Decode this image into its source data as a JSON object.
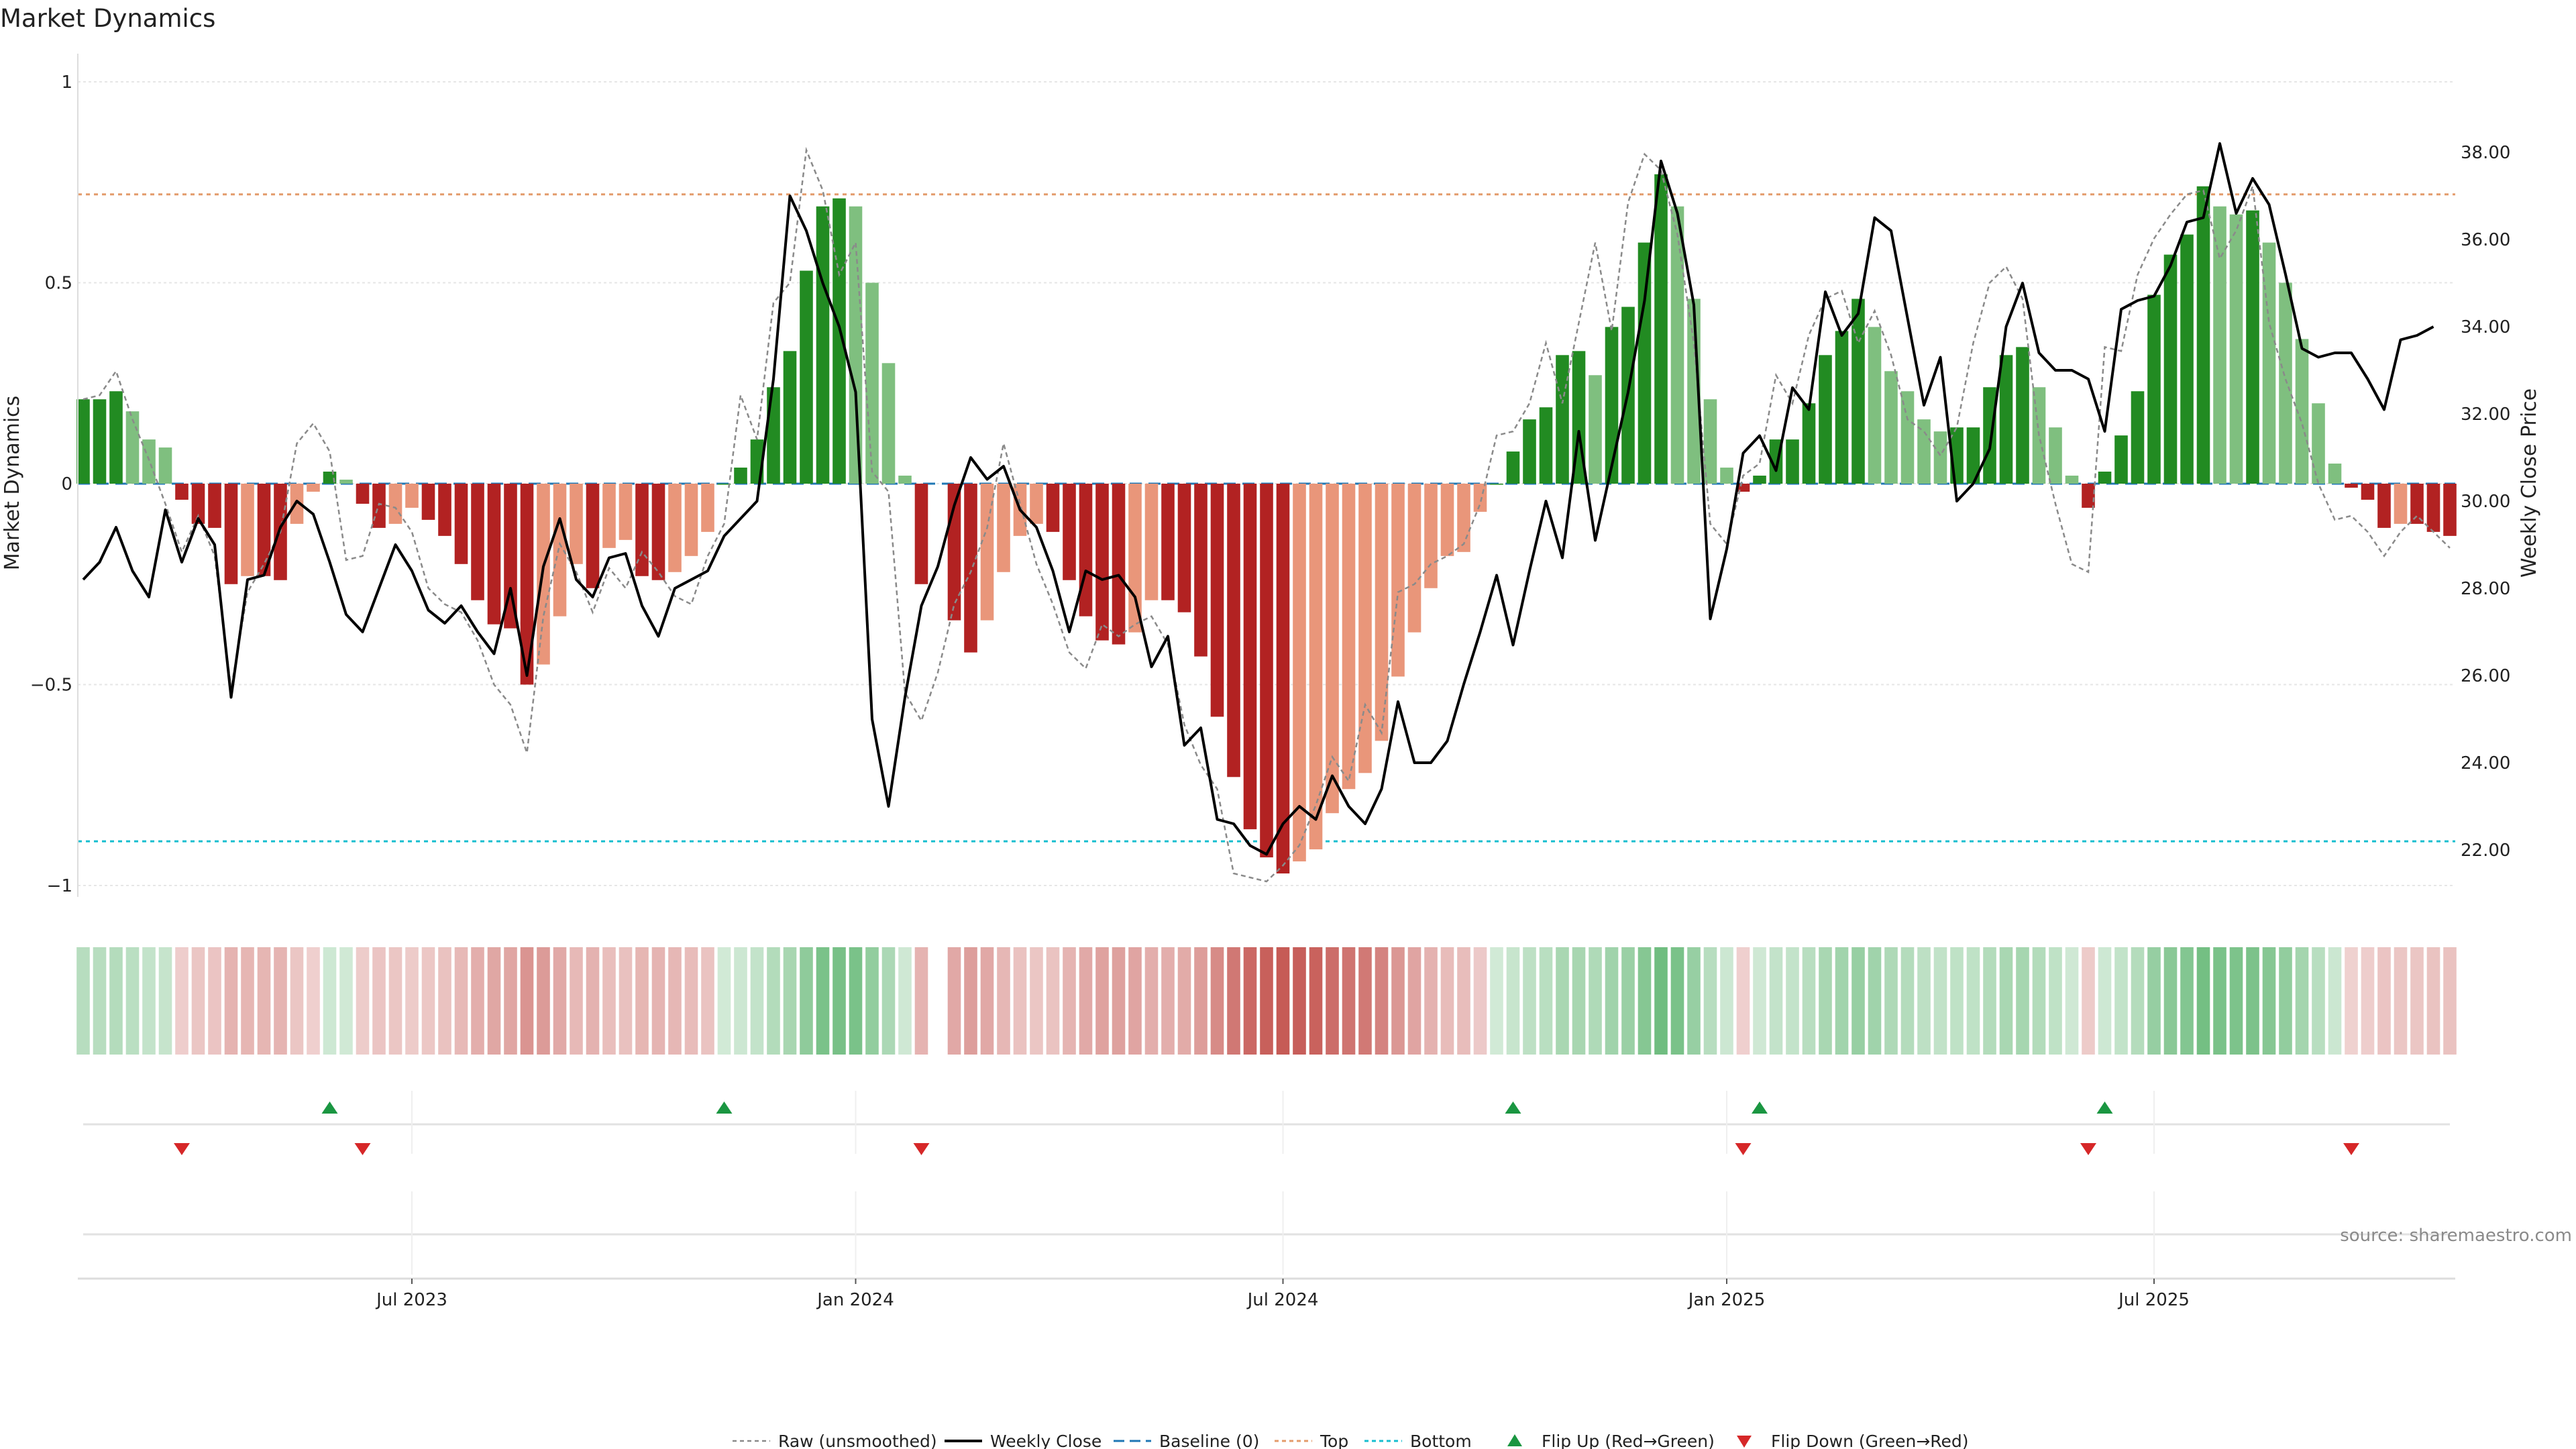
{
  "chart_data": {
    "type": "bar",
    "title": "Market Dynamics",
    "ylabel_left": "Market Dynamics",
    "ylabel_right": "Weekly Close Price",
    "ylim_left": [
      -1.02,
      1.02
    ],
    "ylim_right": [
      21.0,
      39.8
    ],
    "left_ticks": [
      {
        "v": 1,
        "l": "1"
      },
      {
        "v": 0.5,
        "l": "0.5"
      },
      {
        "v": 0,
        "l": "0"
      },
      {
        "v": -0.5,
        "l": "−0.5"
      },
      {
        "v": -1,
        "l": "−1"
      }
    ],
    "right_ticks": [
      {
        "v": 22,
        "l": "22.00"
      },
      {
        "v": 24,
        "l": "24.00"
      },
      {
        "v": 26,
        "l": "26.00"
      },
      {
        "v": 28,
        "l": "28.00"
      },
      {
        "v": 30,
        "l": "30.00"
      },
      {
        "v": 32,
        "l": "32.00"
      },
      {
        "v": 34,
        "l": "34.00"
      },
      {
        "v": 36,
        "l": "36.00"
      },
      {
        "v": 38,
        "l": "38.00"
      }
    ],
    "x_ticks": [
      {
        "i": 20,
        "l": "Jul 2023"
      },
      {
        "i": 47,
        "l": "Jan 2024"
      },
      {
        "i": 73,
        "l": "Jul 2024"
      },
      {
        "i": 100,
        "l": "Jan 2025"
      },
      {
        "i": 126,
        "l": "Jul 2025"
      }
    ],
    "top_level": 0.72,
    "bottom_level": -0.89,
    "baseline": 0,
    "colors": {
      "strong_green": "#228b22",
      "weak_green": "#7fbf7f",
      "strong_red": "#b22222",
      "weak_red": "#e9967a",
      "close_line": "#000000",
      "raw_line": "#8a8a8a",
      "baseline": "#1f77b4",
      "top": "#e39b6b",
      "bottom": "#17becf",
      "flip_up": "#1a9641",
      "flip_down": "#d62728",
      "grid": "#e6e6e6"
    },
    "series": [
      {
        "name": "Market Dynamics",
        "values": [
          0.21,
          0.21,
          0.23,
          0.18,
          0.11,
          0.09,
          -0.04,
          -0.1,
          -0.11,
          -0.25,
          -0.23,
          -0.23,
          -0.24,
          -0.1,
          -0.02,
          0.03,
          0.01,
          -0.05,
          -0.11,
          -0.1,
          -0.06,
          -0.09,
          -0.13,
          -0.2,
          -0.29,
          -0.35,
          -0.36,
          -0.5,
          -0.45,
          -0.33,
          -0.2,
          -0.26,
          -0.16,
          -0.14,
          -0.23,
          -0.24,
          -0.22,
          -0.18,
          -0.12,
          0.0,
          0.04,
          0.11,
          0.24,
          0.33,
          0.53,
          0.69,
          0.71,
          0.69,
          0.5,
          0.3,
          0.02,
          -0.25,
          null,
          -0.34,
          -0.42,
          -0.34,
          -0.22,
          -0.13,
          -0.1,
          -0.12,
          -0.24,
          -0.33,
          -0.39,
          -0.4,
          -0.37,
          -0.29,
          -0.29,
          -0.32,
          -0.43,
          -0.58,
          -0.73,
          -0.86,
          -0.93,
          -0.97,
          -0.94,
          -0.91,
          -0.82,
          -0.76,
          -0.72,
          -0.64,
          -0.48,
          -0.37,
          -0.26,
          -0.18,
          -0.17,
          -0.07,
          0.0,
          0.08,
          0.16,
          0.19,
          0.32,
          0.33,
          0.27,
          0.39,
          0.44,
          0.6,
          0.77,
          0.69,
          0.46,
          0.21,
          0.04,
          -0.02,
          0.02,
          0.11,
          0.11,
          0.2,
          0.32,
          0.38,
          0.46,
          0.39,
          0.28,
          0.23,
          0.16,
          0.13,
          0.14,
          0.14,
          0.24,
          0.32,
          0.34,
          0.24,
          0.14,
          0.02,
          -0.06,
          0.03,
          0.12,
          0.23,
          0.47,
          0.57,
          0.62,
          0.74,
          0.69,
          0.67,
          0.68,
          0.6,
          0.5,
          0.36,
          0.2,
          0.05,
          -0.01,
          -0.04,
          -0.11,
          -0.1,
          -0.1,
          -0.12,
          -0.13
        ]
      },
      {
        "name": "Raw (unsmoothed)",
        "values": [
          0.21,
          0.22,
          0.28,
          0.16,
          0.06,
          -0.05,
          -0.17,
          -0.08,
          -0.18,
          -0.51,
          -0.27,
          -0.2,
          -0.12,
          0.1,
          0.15,
          0.08,
          -0.19,
          -0.18,
          -0.05,
          -0.06,
          -0.12,
          -0.26,
          -0.3,
          -0.32,
          -0.39,
          -0.5,
          -0.55,
          -0.67,
          -0.33,
          -0.15,
          -0.22,
          -0.32,
          -0.21,
          -0.26,
          -0.17,
          -0.22,
          -0.28,
          -0.3,
          -0.18,
          -0.1,
          0.22,
          0.11,
          0.45,
          0.5,
          0.83,
          0.73,
          0.52,
          0.6,
          0.03,
          -0.02,
          -0.52,
          -0.59,
          -0.47,
          -0.3,
          -0.22,
          -0.11,
          0.1,
          -0.05,
          -0.2,
          -0.3,
          -0.42,
          -0.46,
          -0.35,
          -0.38,
          -0.35,
          -0.33,
          -0.4,
          -0.6,
          -0.7,
          -0.76,
          -0.97,
          -0.98,
          -0.99,
          -0.95,
          -0.9,
          -0.8,
          -0.68,
          -0.74,
          -0.55,
          -0.62,
          -0.27,
          -0.25,
          -0.2,
          -0.18,
          -0.15,
          -0.05,
          0.12,
          0.13,
          0.2,
          0.35,
          0.2,
          0.4,
          0.6,
          0.38,
          0.7,
          0.82,
          0.78,
          0.62,
          0.35,
          -0.1,
          -0.15,
          0.02,
          0.05,
          0.27,
          0.2,
          0.37,
          0.46,
          0.48,
          0.35,
          0.43,
          0.32,
          0.16,
          0.13,
          0.07,
          0.14,
          0.35,
          0.5,
          0.54,
          0.46,
          0.12,
          -0.05,
          -0.2,
          -0.22,
          0.34,
          0.33,
          0.52,
          0.61,
          0.67,
          0.72,
          0.73,
          0.56,
          0.63,
          0.74,
          0.4,
          0.26,
          0.15,
          0.0,
          -0.09,
          -0.08,
          -0.12,
          -0.18,
          -0.12,
          -0.08,
          -0.12,
          -0.16
        ]
      },
      {
        "name": "Weekly Close",
        "values": [
          28.2,
          28.6,
          29.4,
          28.4,
          27.8,
          29.8,
          28.6,
          29.6,
          29.0,
          25.5,
          28.2,
          28.3,
          29.4,
          30.0,
          29.7,
          28.6,
          27.4,
          27.0,
          28.0,
          29.0,
          28.4,
          27.5,
          27.2,
          27.6,
          27.0,
          26.5,
          28.0,
          26.0,
          28.5,
          29.6,
          28.2,
          27.8,
          28.7,
          28.8,
          27.6,
          26.9,
          28.0,
          28.2,
          28.4,
          29.2,
          29.6,
          30.0,
          32.8,
          37.0,
          36.2,
          35.0,
          34.0,
          32.5,
          25.0,
          23.0,
          25.5,
          27.6,
          28.5,
          29.9,
          31.0,
          30.5,
          30.8,
          29.8,
          29.4,
          28.4,
          27.0,
          28.4,
          28.2,
          28.3,
          27.8,
          26.2,
          26.9,
          24.4,
          24.8,
          22.7,
          22.6,
          22.1,
          21.9,
          22.6,
          23.0,
          22.7,
          23.7,
          23.0,
          22.6,
          23.4,
          25.4,
          24.0,
          24.0,
          24.5,
          25.8,
          27.0,
          28.3,
          26.7,
          28.4,
          30.0,
          28.7,
          31.6,
          29.1,
          30.8,
          32.5,
          34.6,
          37.8,
          36.6,
          34.5,
          27.3,
          28.9,
          31.1,
          31.5,
          30.7,
          32.6,
          32.1,
          34.8,
          33.8,
          34.3,
          36.5,
          36.2,
          34.2,
          32.2,
          33.3,
          30.0,
          30.4,
          31.2,
          34.0,
          35.0,
          33.4,
          33.0,
          33.0,
          32.8,
          31.6,
          34.4,
          34.6,
          34.7,
          35.4,
          36.4,
          36.5,
          38.2,
          36.6,
          37.4,
          36.8,
          35.2,
          33.5,
          33.3,
          33.4,
          33.4,
          32.8,
          32.1,
          33.7,
          33.8,
          34.0
        ]
      }
    ],
    "flips_up": [
      15,
      39,
      87,
      102,
      123
    ],
    "flips_down": [
      6,
      17,
      51,
      101,
      122,
      138
    ],
    "legend": [
      "Raw (unsmoothed)",
      "Weekly Close",
      "Baseline (0)",
      "Top",
      "Bottom",
      "Flip Up (Red→Green)",
      "Flip Down (Green→Red)"
    ],
    "source": "source: sharemaestro.com"
  }
}
